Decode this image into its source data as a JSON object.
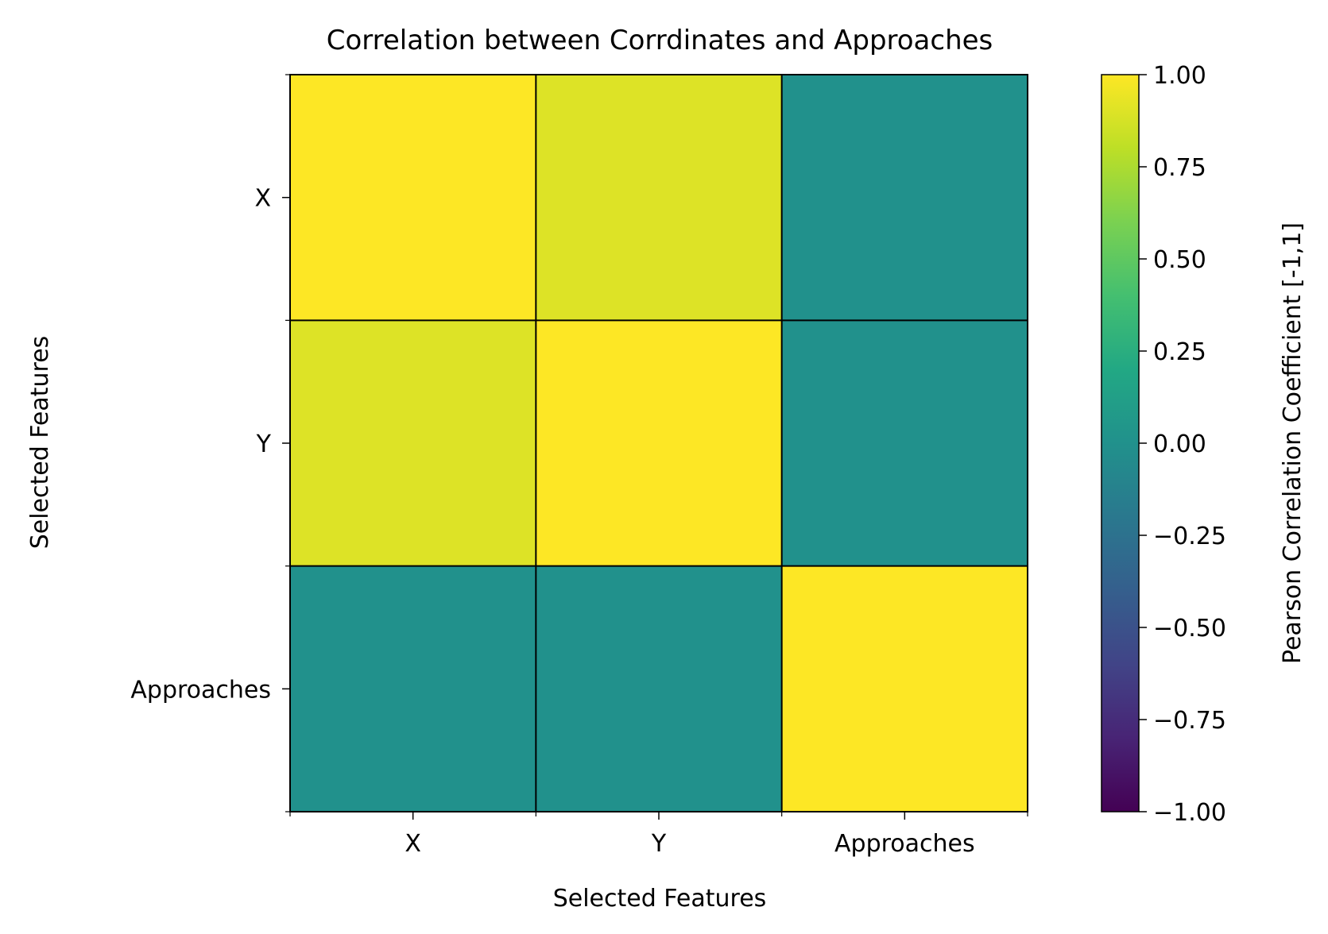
{
  "chart_data": {
    "type": "heatmap",
    "title": "Correlation between Corrdinates and Approaches",
    "xlabel": "Selected Features",
    "ylabel": "Selected Features",
    "x_categories": [
      "X",
      "Y",
      "Approaches"
    ],
    "y_categories": [
      "X",
      "Y",
      "Approaches"
    ],
    "values": [
      [
        1.0,
        0.9,
        0.0
      ],
      [
        0.9,
        1.0,
        0.0
      ],
      [
        0.0,
        0.0,
        1.0
      ]
    ],
    "colorbar": {
      "label": "Pearson Correlation Coefficient [-1,1]",
      "range": [
        -1,
        1
      ],
      "colormap": "viridis",
      "ticks": [
        1.0,
        0.75,
        0.5,
        0.25,
        0.0,
        -0.25,
        -0.5,
        -0.75,
        -1.0
      ],
      "tick_labels": [
        "1.00",
        "0.75",
        "0.50",
        "0.25",
        "0.00",
        "−0.25",
        "−0.50",
        "−0.75",
        "−1.00"
      ]
    },
    "grid": true
  }
}
